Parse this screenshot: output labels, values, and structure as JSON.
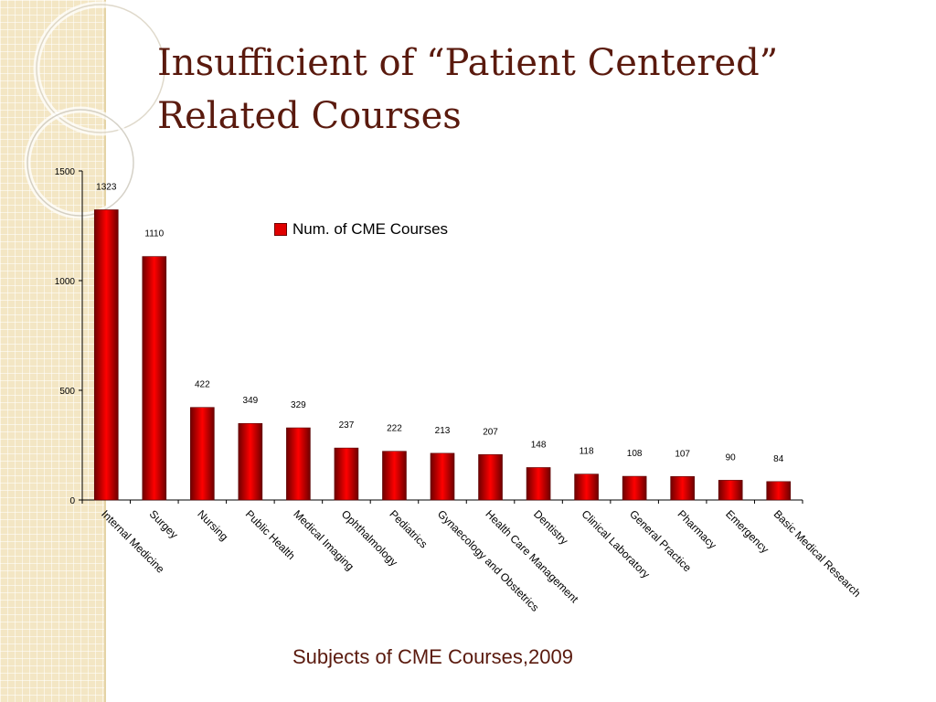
{
  "slide": {
    "title": "Insufficient of “Patient Centered” Related Courses",
    "caption": "Subjects of CME Courses,2009"
  },
  "colors": {
    "title": "#5a1a0e",
    "bar_dark": "#6e0000",
    "bar_bright": "#ff0000",
    "strip": "#f3e6c4"
  },
  "chart_data": {
    "type": "bar",
    "categories": [
      "Internal Medicine",
      "Surgey",
      "Nursing",
      "Public Health",
      "Medical Imaging",
      "Ophthalmology",
      "Pediatrics",
      "Gynaecology and Obstetrics",
      "Health Care Management",
      "Dentistry",
      "Clinical Laboratory",
      "General Practice",
      "Pharmacy",
      "Emergency",
      "Basic Medical Research"
    ],
    "series": [
      {
        "name": "Num. of CME Courses",
        "values": [
          1323,
          1110,
          422,
          349,
          329,
          237,
          222,
          213,
          207,
          148,
          118,
          108,
          107,
          90,
          84
        ]
      }
    ],
    "yticks": [
      0,
      500,
      1000,
      1500
    ],
    "ylim": [
      0,
      1500
    ],
    "legend_position": "top-center",
    "grid": false
  }
}
